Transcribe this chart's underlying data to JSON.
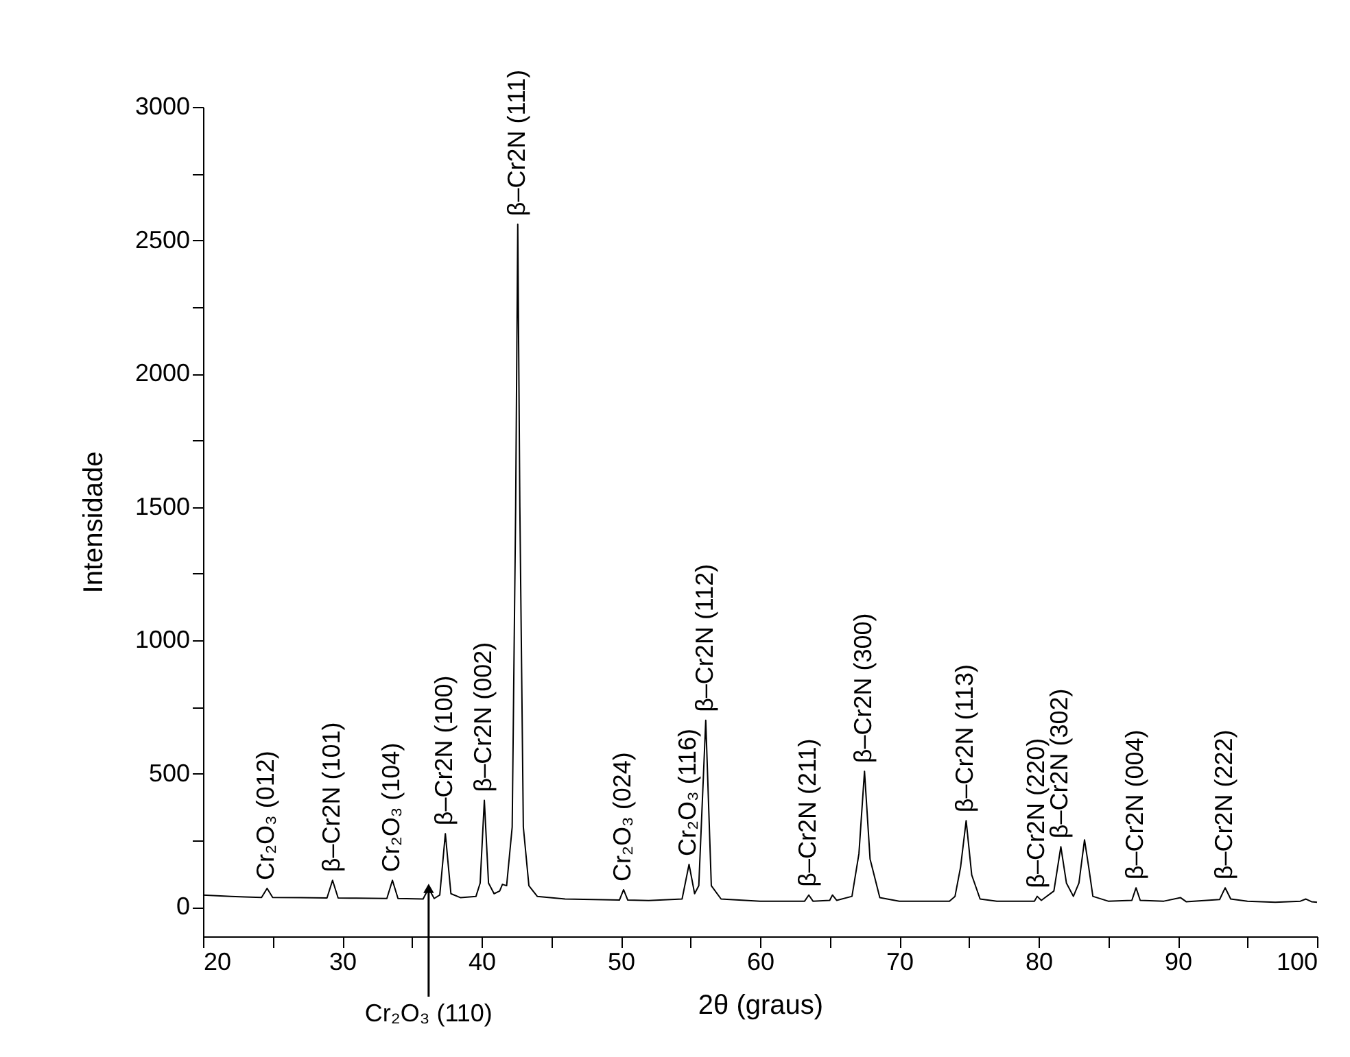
{
  "chart_data": {
    "type": "line",
    "xlabel": "2θ (graus)",
    "ylabel": "Intensidade",
    "color": "#000000",
    "grid": false,
    "marker": "none",
    "line_style": "solid",
    "xlim": [
      20,
      100
    ],
    "ylim": [
      -110,
      3000
    ],
    "xticks": [
      20,
      {
        "value": 25,
        "label": null
      },
      30,
      {
        "value": 35,
        "label": null
      },
      40,
      {
        "value": 45,
        "label": null
      },
      50,
      {
        "value": 55,
        "label": null
      },
      60,
      {
        "value": 65,
        "label": null
      },
      70,
      {
        "value": 75,
        "label": null
      },
      80,
      {
        "value": 85,
        "label": null
      },
      90,
      {
        "value": 95,
        "label": null
      },
      100
    ],
    "yticks": [
      0,
      {
        "value": 250,
        "label": null
      },
      500,
      {
        "value": 750,
        "label": null
      },
      1000,
      {
        "value": 1250,
        "label": null
      },
      1500,
      {
        "value": 1750,
        "label": null
      },
      2000,
      {
        "value": 2250,
        "label": null
      },
      2500,
      {
        "value": 2750,
        "label": null
      },
      3000
    ],
    "x": [
      20,
      21,
      22,
      23,
      24.2,
      24.6,
      25,
      27,
      28.9,
      29.3,
      29.7,
      31,
      33.2,
      33.6,
      34,
      35.8,
      36.2,
      36.6,
      37.0,
      37.4,
      37.8,
      38.5,
      39.6,
      39.9,
      40.2,
      40.5,
      40.9,
      41.3,
      41.5,
      41.8,
      42.2,
      42.45,
      42.6,
      42.75,
      43.0,
      43.4,
      44,
      46,
      48,
      49.9,
      50.2,
      50.5,
      52,
      54.4,
      54.9,
      55.3,
      55.6,
      56.1,
      56.5,
      57.2,
      60,
      63.2,
      63.5,
      63.8,
      65.0,
      65.2,
      65.5,
      66.6,
      67.1,
      67.5,
      67.9,
      68.6,
      70,
      73.6,
      74.0,
      74.4,
      74.8,
      75.2,
      75.8,
      77,
      79.7,
      79.9,
      80.2,
      81.1,
      81.6,
      82.0,
      82.5,
      82.9,
      83.3,
      83.6,
      83.9,
      85,
      86.7,
      87.0,
      87.3,
      89,
      90.2,
      90.6,
      93.0,
      93.4,
      93.8,
      95,
      97,
      98.8,
      99.2,
      99.6,
      100
    ],
    "values": [
      45,
      42,
      40,
      38,
      36,
      70,
      36,
      35,
      34,
      100,
      34,
      33,
      32,
      100,
      32,
      30,
      70,
      32,
      45,
      275,
      50,
      35,
      40,
      90,
      400,
      90,
      50,
      60,
      85,
      80,
      300,
      1500,
      2560,
      1500,
      300,
      80,
      40,
      30,
      28,
      26,
      65,
      26,
      24,
      30,
      160,
      50,
      80,
      700,
      80,
      30,
      22,
      22,
      45,
      22,
      25,
      45,
      25,
      40,
      200,
      509,
      180,
      35,
      22,
      22,
      40,
      150,
      324,
      120,
      30,
      22,
      22,
      40,
      25,
      60,
      226,
      90,
      40,
      90,
      252,
      150,
      40,
      22,
      25,
      72,
      25,
      22,
      35,
      20,
      28,
      72,
      30,
      22,
      18,
      22,
      30,
      20,
      18
    ],
    "annotations": [
      {
        "text": "Cr₂O₃ (012)",
        "x": 24.6,
        "y": 70
      },
      {
        "text": "β–Cr2N (101)",
        "x": 29.3,
        "y": 100
      },
      {
        "text": "Cr₂O₃ (104)",
        "x": 33.6,
        "y": 100
      },
      {
        "text": "β–Cr2N (100)",
        "x": 37.4,
        "y": 275
      },
      {
        "text": "β–Cr2N (002)",
        "x": 40.2,
        "y": 400
      },
      {
        "text": "β–Cr2N (111)",
        "x": 42.6,
        "y": 2560
      },
      {
        "text": "Cr₂O₃ (024)",
        "x": 50.2,
        "y": 65
      },
      {
        "text": "Cr₂O₃ (116)",
        "x": 54.9,
        "y": 160
      },
      {
        "text": "β–Cr2N (112)",
        "x": 56.1,
        "y": 700
      },
      {
        "text": "β–Cr2N (211)",
        "x": 63.5,
        "y": 45
      },
      {
        "text": "β–Cr2N (300)",
        "x": 67.5,
        "y": 509
      },
      {
        "text": "β–Cr2N (113)",
        "x": 74.8,
        "y": 324
      },
      {
        "text": "β–Cr2N (220)",
        "x": 79.9,
        "y": 40
      },
      {
        "text": "β–Cr2N (302)",
        "x": 81.6,
        "y": 226
      },
      {
        "text": "β–Cr2N (004)",
        "x": 87.0,
        "y": 72
      },
      {
        "text": "β–Cr2N (222)",
        "x": 93.4,
        "y": 72
      },
      {
        "text": "Cr₂O₃ (110)",
        "x": 36.2,
        "y": 70
      }
    ]
  }
}
